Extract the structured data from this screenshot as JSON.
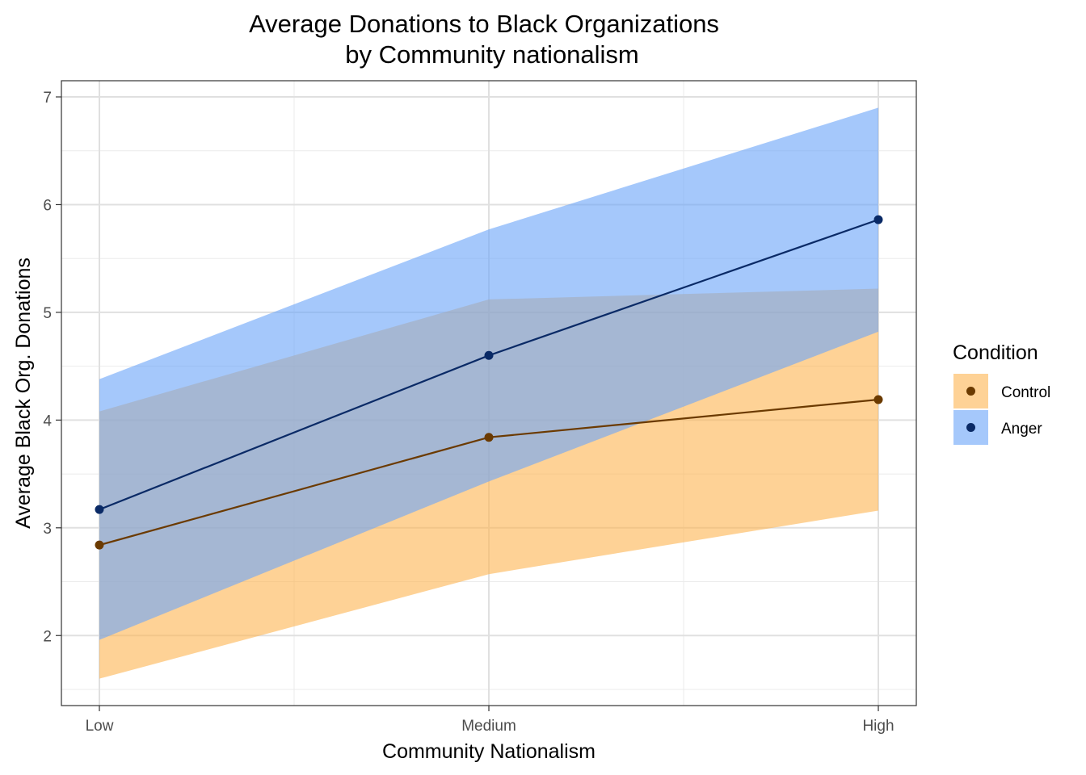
{
  "chart_data": {
    "type": "line",
    "title": [
      "Average Donations to Black Organizations",
      "by Community nationalism"
    ],
    "xlabel": "Community Nationalism",
    "ylabel": "Average Black Org. Donations",
    "categories": [
      "Low",
      "Medium",
      "High"
    ],
    "ylim": [
      1.35,
      7.15
    ],
    "yticks": [
      2,
      3,
      4,
      5,
      6,
      7
    ],
    "grid": true,
    "legend": {
      "title": "Condition",
      "position": "right"
    },
    "series": [
      {
        "name": "Control",
        "values": [
          2.84,
          3.84,
          4.19
        ],
        "lower": [
          1.6,
          2.57,
          3.16
        ],
        "upper": [
          4.08,
          5.12,
          5.22
        ],
        "line_color": "#6b3a00",
        "point_color": "#6b3a00",
        "ribbon_color": "#fdb755"
      },
      {
        "name": "Anger",
        "values": [
          3.17,
          4.6,
          5.86
        ],
        "lower": [
          1.96,
          3.43,
          4.82
        ],
        "upper": [
          4.38,
          5.77,
          6.9
        ],
        "line_color": "#0a2a66",
        "point_color": "#0a2a66",
        "ribbon_color": "#6ea6f8"
      }
    ]
  }
}
